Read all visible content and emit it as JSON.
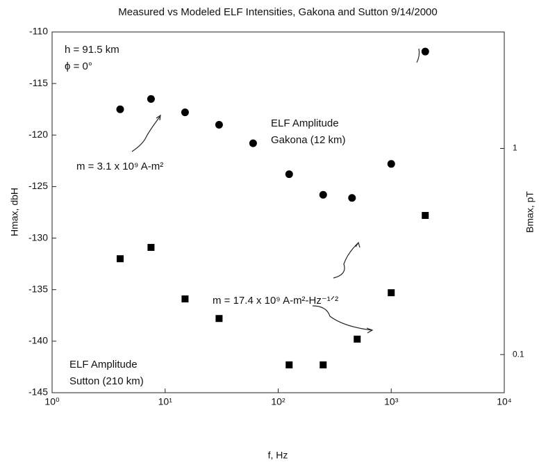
{
  "chart_data": {
    "type": "scatter",
    "title": "Measured vs Modeled ELF Intensities, Gakona and Sutton 9/14/2000",
    "x_label": "f, Hz",
    "y_label": "Hmax, dbH",
    "y2_label": "Bmax, pT",
    "xscale": "log",
    "y2scale": "log",
    "xlim": [
      1,
      10000
    ],
    "xticks": [
      {
        "value": 1,
        "label": "10⁰"
      },
      {
        "value": 10,
        "label": "10¹"
      },
      {
        "value": 100,
        "label": "10²"
      },
      {
        "value": 1000,
        "label": "10³"
      },
      {
        "value": 10000,
        "label": "10⁴"
      }
    ],
    "ylim": [
      -145,
      -110
    ],
    "yticks": [
      -145,
      -140,
      -135,
      -130,
      -125,
      -120,
      -115,
      -110
    ],
    "y2lim": [
      0.0653,
      3.67
    ],
    "y2ticks": [
      0.1,
      1
    ],
    "series": [
      {
        "name": "Gakona",
        "marker": "circle",
        "color": "#000000",
        "x": [
          4,
          7.5,
          15,
          30,
          60,
          125,
          250,
          450,
          1000,
          2000
        ],
        "values": [
          -117.5,
          -116.5,
          -117.8,
          -119,
          -120.8,
          -123.8,
          -125.8,
          -126.1,
          -122.8,
          -111.9
        ]
      },
      {
        "name": "Sutton",
        "marker": "square",
        "color": "#000000",
        "x": [
          4,
          7.5,
          15,
          30,
          125,
          250,
          500,
          1000,
          2000
        ],
        "values": [
          -132,
          -130.9,
          -135.9,
          -137.8,
          -142.3,
          -142.3,
          -139.8,
          -135.3,
          -127.8
        ]
      }
    ],
    "annotations": [
      "h = 91.5 km",
      "ϕ = 0°",
      "ELF Amplitude",
      "Gakona (12 km)",
      "m = 3.1 x 10⁹ A-m²",
      "m = 17.4 x 10⁹ A-m²-Hz⁻¹ᐟ²",
      "ELF Amplitude",
      "Sutton (210 km)"
    ]
  }
}
